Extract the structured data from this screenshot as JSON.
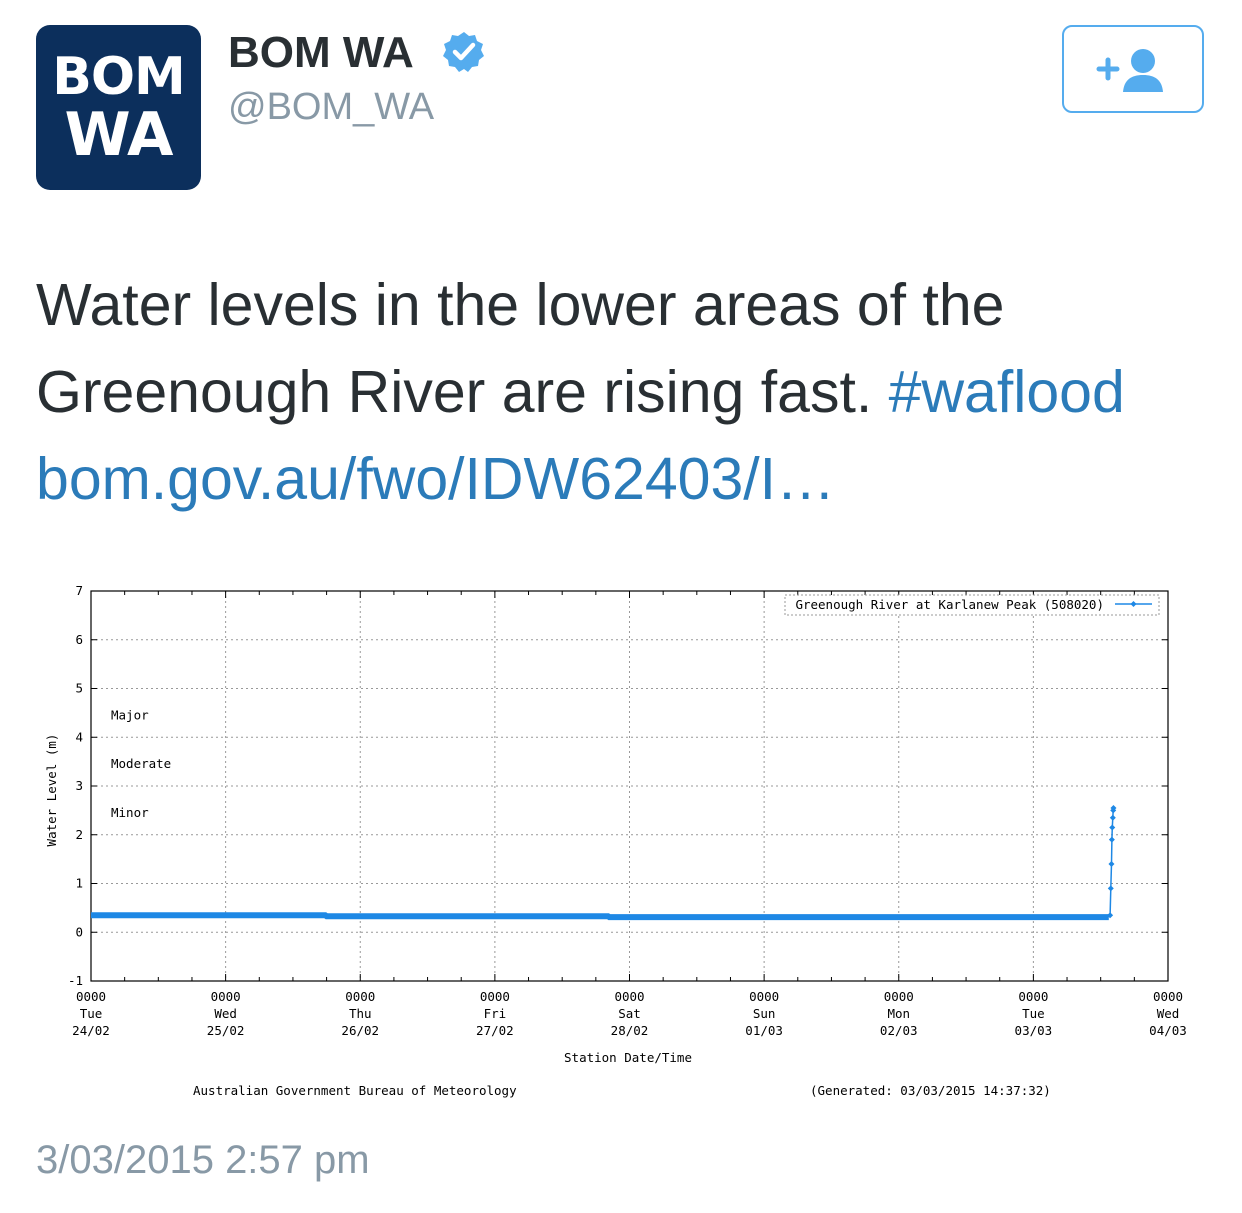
{
  "account": {
    "avatar_line1": "BOM",
    "avatar_line2": "WA",
    "name": "BOM WA",
    "handle": "@BOM_WA",
    "verified": true,
    "verified_icon": "verified-badge-icon",
    "follow_icon": "add-user-icon"
  },
  "tweet": {
    "text": "Water levels in the lower areas of the Greenough River are rising fast. ",
    "hashtag": "#waflood",
    "link": "bom.gov.au/fwo/IDW62403/I…"
  },
  "timestamp": "3/03/2015 2:57 pm",
  "colors": {
    "brand_navy": "#0c2f5c",
    "link_blue": "#2b7bb9",
    "muted_gray": "#8899a6",
    "series_blue": "#1e88e5"
  },
  "chart_data": {
    "type": "line",
    "legend": "Greenough River at Karlanew Peak (508020)",
    "legend_position": "top-right",
    "ylabel": "Water Level (m)",
    "xlabel": "Station Date/Time",
    "ylim": [
      -1,
      7
    ],
    "yticks": [
      "7",
      "6",
      "5",
      "4",
      "3",
      "2",
      "1",
      "0",
      "-1"
    ],
    "xlim_days": [
      0,
      8
    ],
    "xticks": [
      {
        "time": "0000",
        "day": "Tue",
        "date": "24/02"
      },
      {
        "time": "0000",
        "day": "Wed",
        "date": "25/02"
      },
      {
        "time": "0000",
        "day": "Thu",
        "date": "26/02"
      },
      {
        "time": "0000",
        "day": "Fri",
        "date": "27/02"
      },
      {
        "time": "0000",
        "day": "Sat",
        "date": "28/02"
      },
      {
        "time": "0000",
        "day": "Sun",
        "date": "01/03"
      },
      {
        "time": "0000",
        "day": "Mon",
        "date": "02/03"
      },
      {
        "time": "0000",
        "day": "Tue",
        "date": "03/03"
      },
      {
        "time": "0000",
        "day": "Wed",
        "date": "04/03"
      }
    ],
    "thresholds": [
      {
        "label": "Major",
        "value": 4.45
      },
      {
        "label": "Moderate",
        "value": 3.45
      },
      {
        "label": "Minor",
        "value": 2.45
      }
    ],
    "grid": true,
    "series": [
      {
        "name": "Greenough River at Karlanew Peak (508020)",
        "points": [
          {
            "t": 0.0,
            "v": 0.35
          },
          {
            "t": 1.74,
            "v": 0.35
          },
          {
            "t": 1.75,
            "v": 0.33
          },
          {
            "t": 3.84,
            "v": 0.33
          },
          {
            "t": 3.85,
            "v": 0.31
          },
          {
            "t": 7.56,
            "v": 0.31
          },
          {
            "t": 7.57,
            "v": 0.35
          },
          {
            "t": 7.575,
            "v": 0.9
          },
          {
            "t": 7.58,
            "v": 1.4
          },
          {
            "t": 7.583,
            "v": 1.9
          },
          {
            "t": 7.586,
            "v": 2.15
          },
          {
            "t": 7.59,
            "v": 2.35
          },
          {
            "t": 7.593,
            "v": 2.5
          },
          {
            "t": 7.595,
            "v": 2.55
          }
        ]
      }
    ],
    "footer_left": "Australian Government Bureau of Meteorology",
    "footer_right": "(Generated: 03/03/2015 14:37:32)"
  }
}
